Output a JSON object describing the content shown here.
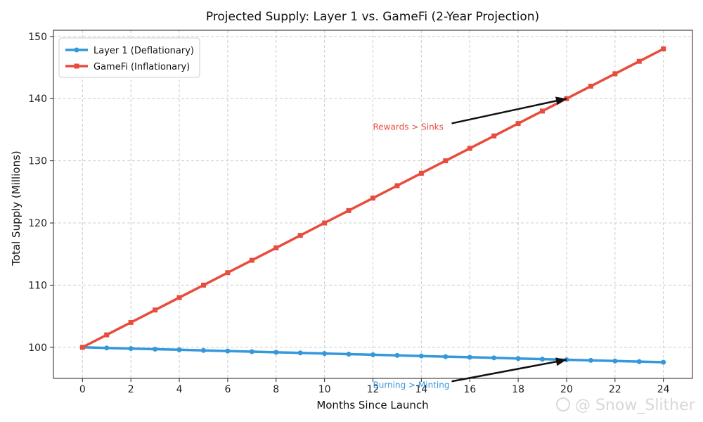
{
  "chart_data": {
    "type": "line",
    "title": "Projected Supply: Layer 1 vs. GameFi (2-Year Projection)",
    "xlabel": "Months Since Launch",
    "ylabel": "Total Supply (Millions)",
    "xlim": [
      -1.2,
      25.2
    ],
    "ylim": [
      95,
      151
    ],
    "xticks": [
      0,
      2,
      4,
      6,
      8,
      10,
      12,
      14,
      16,
      18,
      20,
      22,
      24
    ],
    "yticks": [
      100,
      110,
      120,
      130,
      140,
      150
    ],
    "grid": true,
    "legend_position": "top-left",
    "x": [
      0,
      1,
      2,
      3,
      4,
      5,
      6,
      7,
      8,
      9,
      10,
      11,
      12,
      13,
      14,
      15,
      16,
      17,
      18,
      19,
      20,
      21,
      22,
      23,
      24
    ],
    "series": [
      {
        "name": "Layer 1 (Deflationary)",
        "color": "#3498db",
        "marker": "circle",
        "values": [
          100.0,
          99.9,
          99.8,
          99.7,
          99.6,
          99.5,
          99.4,
          99.3,
          99.2,
          99.1,
          99.0,
          98.9,
          98.8,
          98.7,
          98.6,
          98.5,
          98.4,
          98.3,
          98.2,
          98.1,
          98.0,
          97.9,
          97.8,
          97.7,
          97.6
        ]
      },
      {
        "name": "GameFi (Inflationary)",
        "color": "#e74c3c",
        "marker": "square",
        "values": [
          100,
          102,
          104,
          106,
          108,
          110,
          112,
          114,
          116,
          118,
          120,
          122,
          124,
          126,
          128,
          130,
          132,
          134,
          136,
          138,
          140,
          142,
          144,
          146,
          148
        ]
      }
    ],
    "annotations": [
      {
        "text": "Rewards > Sinks",
        "color": "#e74c3c",
        "point": [
          20,
          140
        ],
        "text_pos": [
          12,
          135
        ]
      },
      {
        "text": "Burning > Minting",
        "color": "#3498db",
        "point": [
          20,
          98
        ],
        "text_pos": [
          12,
          93.5
        ]
      }
    ]
  },
  "watermark": "@ Snow_Slither"
}
